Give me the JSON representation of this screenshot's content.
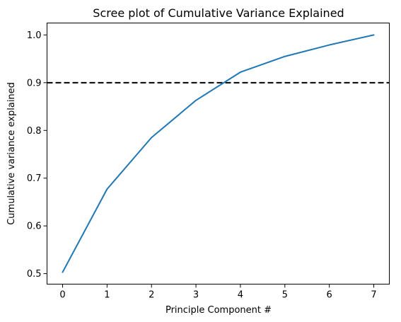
{
  "chart_data": {
    "type": "line",
    "title": "Scree plot of Cumulative Variance Explained",
    "xlabel": "Principle Component #",
    "ylabel": "Cumulative variance explained",
    "x": [
      0,
      1,
      2,
      3,
      4,
      5,
      6,
      7
    ],
    "series": [
      {
        "values": [
          0.503,
          0.677,
          0.785,
          0.863,
          0.922,
          0.955,
          0.979,
          1.0
        ],
        "color": "#1f77b4"
      }
    ],
    "reference_line": {
      "y": 0.9,
      "style": "dashed",
      "color": "#000000"
    },
    "xlim": [
      -0.35,
      7.35
    ],
    "ylim": [
      0.478,
      1.025
    ],
    "xticks": [
      0,
      1,
      2,
      3,
      4,
      5,
      6,
      7
    ],
    "yticks": [
      0.5,
      0.6,
      0.7,
      0.8,
      0.9,
      1.0
    ],
    "xtick_labels": [
      "0",
      "1",
      "2",
      "3",
      "4",
      "5",
      "6",
      "7"
    ],
    "ytick_labels": [
      "0.5",
      "0.6",
      "0.7",
      "0.8",
      "0.9",
      "1.0"
    ],
    "grid": false,
    "legend": "none"
  }
}
